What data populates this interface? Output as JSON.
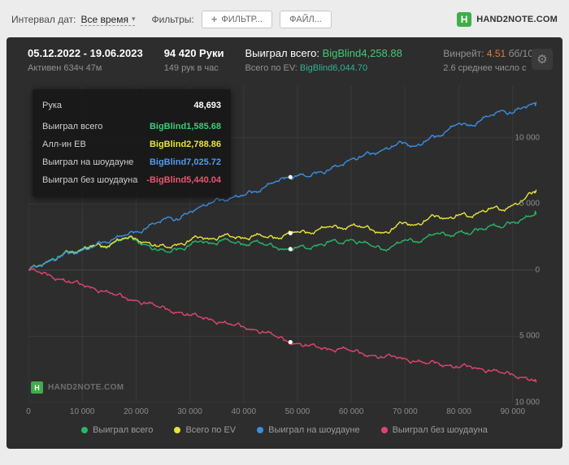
{
  "icons": {
    "gear": "⚙",
    "caret": "▾",
    "plus": "+",
    "logo_letter": "H"
  },
  "toolbar": {
    "date_interval_label": "Интервал дат:",
    "date_interval_value": "Все время",
    "filters_label": "Фильтры:",
    "filter_button": "ФИЛЬТР...",
    "file_button": "ФАЙЛ...",
    "logo_text": "HAND2NOTE.COM"
  },
  "header": {
    "date_range": "05.12.2022 - 19.06.2023",
    "active_time": "Активен 634ч 47м",
    "hands": "94 420 Руки",
    "hands_per_hour": "149 рук в час",
    "won_total_label": "Выиграл всего:",
    "won_total_value": "BigBlind4,258.88",
    "ev_total_label": "Всего по EV:",
    "ev_total_value": "BigBlind6,044.70",
    "winrate_label": "Винрейт:",
    "winrate_value": "4.51",
    "winrate_unit": "бб/10",
    "avg_text": "2.6 среднее число с"
  },
  "tooltip": {
    "rows": [
      {
        "label": "Рука",
        "value": "48,693",
        "color": "#ffffff"
      },
      {
        "label": "Выиграл всего",
        "value": "BigBlind1,585.68",
        "color": "#3ecb77"
      },
      {
        "label": "Алл-ин EВ",
        "value": "BigBlind2,788.86",
        "color": "#e6e33c"
      },
      {
        "label": "Выиграл на шоудауне",
        "value": "BigBlind7,025.72",
        "color": "#4f9be8"
      },
      {
        "label": "Выиграл без шоудауна",
        "value": "-BigBlind5,440.04",
        "color": "#e8556f"
      }
    ]
  },
  "watermark": {
    "text": "HAND2NOTE.COM"
  },
  "chart_data": {
    "type": "line",
    "title": "",
    "xlabel": "Руки",
    "ylabel": "BigBlind",
    "xlim": [
      0,
      94420
    ],
    "ylim": [
      -10000,
      13900
    ],
    "grid": true,
    "legend_position": "bottom",
    "x": [
      0,
      2000,
      4000,
      6000,
      8000,
      10000,
      12000,
      14000,
      16000,
      18000,
      20000,
      22000,
      24000,
      26000,
      28000,
      30000,
      32000,
      34000,
      36000,
      38000,
      40000,
      42000,
      44000,
      46000,
      48000,
      50000,
      52000,
      54000,
      56000,
      58000,
      60000,
      62000,
      64000,
      66000,
      68000,
      70000,
      72000,
      74000,
      76000,
      78000,
      80000,
      82000,
      84000,
      86000,
      88000,
      90000,
      92000,
      94000,
      94420
    ],
    "series": [
      {
        "name": "Выиграл всего",
        "color": "#29b566",
        "values": [
          0,
          350,
          750,
          1100,
          1400,
          1600,
          1900,
          1700,
          2100,
          2400,
          2250,
          1900,
          1500,
          1350,
          1600,
          1900,
          2200,
          2000,
          2300,
          2100,
          1900,
          2200,
          1900,
          1700,
          1560,
          1750,
          1600,
          1900,
          2200,
          2000,
          2300,
          2100,
          1800,
          1500,
          1900,
          2300,
          2100,
          2500,
          2800,
          2600,
          2900,
          2700,
          3100,
          3400,
          3200,
          3600,
          3900,
          4150,
          4258.88
        ]
      },
      {
        "name": "Всего по EV",
        "color": "#e6e33c",
        "values": [
          0,
          320,
          700,
          1050,
          1350,
          1550,
          1850,
          1750,
          2150,
          2450,
          2350,
          2100,
          1800,
          1700,
          1950,
          2250,
          2500,
          2350,
          2600,
          2500,
          2400,
          2650,
          2500,
          2400,
          2760,
          2900,
          2800,
          3100,
          3300,
          3150,
          3400,
          3250,
          3000,
          2800,
          3200,
          3600,
          3400,
          3800,
          4100,
          3900,
          4200,
          4000,
          4400,
          4700,
          4500,
          4900,
          5300,
          5900,
          6044.7
        ]
      },
      {
        "name": "Выиграл на шоудауне",
        "color": "#3b8de0",
        "values": [
          0,
          300,
          700,
          1050,
          1300,
          1500,
          1750,
          2100,
          2400,
          2650,
          2870,
          3200,
          3600,
          4000,
          3800,
          4400,
          4800,
          5100,
          5300,
          5500,
          5650,
          5900,
          6300,
          6700,
          6980,
          7150,
          7050,
          7400,
          7600,
          7900,
          8380,
          8600,
          8800,
          9100,
          9400,
          9610,
          9350,
          9800,
          10100,
          10600,
          11100,
          10900,
          11300,
          11700,
          12050,
          11850,
          12300,
          12600,
          12700
        ]
      },
      {
        "name": "Выиграл без шоудауна",
        "color": "#e0446e",
        "values": [
          0,
          -150,
          -400,
          -700,
          -950,
          -1100,
          -1350,
          -1600,
          -1850,
          -2100,
          -2300,
          -2500,
          -2750,
          -3000,
          -3200,
          -3400,
          -3550,
          -3750,
          -3950,
          -4150,
          -4300,
          -4500,
          -4700,
          -5000,
          -5380,
          -5550,
          -5700,
          -5850,
          -6000,
          -5900,
          -6100,
          -6300,
          -6450,
          -6600,
          -6500,
          -6700,
          -6900,
          -7050,
          -7000,
          -7200,
          -7350,
          -7250,
          -7450,
          -7600,
          -7750,
          -7900,
          -8100,
          -8350,
          -8441.12
        ]
      }
    ],
    "x_ticks": [
      {
        "value": 0,
        "label": "0"
      },
      {
        "value": 10000,
        "label": "10 000"
      },
      {
        "value": 20000,
        "label": "20 000"
      },
      {
        "value": 30000,
        "label": "30 000"
      },
      {
        "value": 40000,
        "label": "40 000"
      },
      {
        "value": 50000,
        "label": "50 000"
      },
      {
        "value": 60000,
        "label": "60 000"
      },
      {
        "value": 70000,
        "label": "70 000"
      },
      {
        "value": 80000,
        "label": "80 000"
      },
      {
        "value": 90000,
        "label": "90 000"
      }
    ],
    "y_ticks": [
      {
        "value": 10000,
        "label": "10 000"
      },
      {
        "value": 5000,
        "label": "5 000"
      },
      {
        "value": 0,
        "label": "0"
      },
      {
        "value": -5000,
        "label": "5 000"
      },
      {
        "value": -10000,
        "label": "10 000"
      }
    ],
    "hover": {
      "x": 48693,
      "values": [
        1585.68,
        2788.86,
        7025.72,
        -5440.04
      ]
    }
  }
}
